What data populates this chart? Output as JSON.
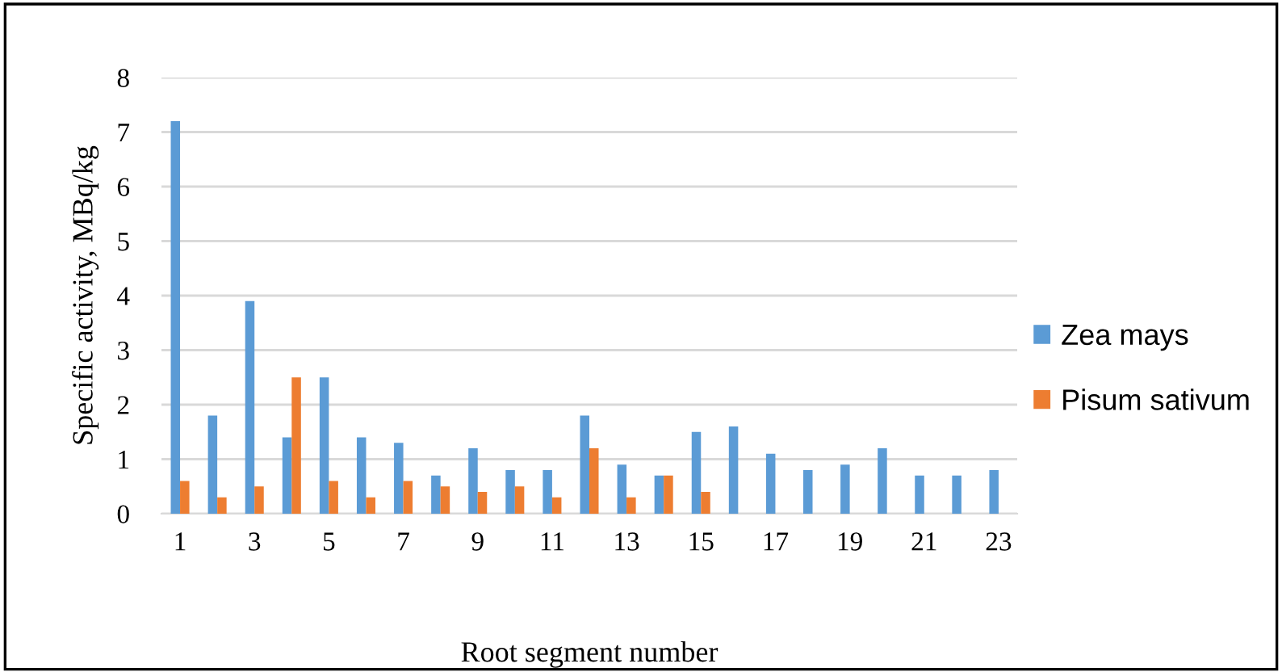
{
  "chart_data": {
    "type": "bar",
    "categories": [
      "1",
      null,
      "3",
      null,
      "5",
      null,
      "7",
      null,
      "9",
      null,
      "11",
      null,
      "13",
      null,
      "15",
      null,
      "17",
      null,
      "19",
      null,
      "21",
      null,
      "23"
    ],
    "series": [
      {
        "name": "Zea mays",
        "color": "#5b9bd5",
        "values": [
          7.2,
          1.8,
          3.9,
          1.4,
          2.5,
          1.4,
          1.3,
          0.7,
          1.2,
          0.8,
          0.8,
          1.8,
          0.9,
          0.7,
          1.5,
          1.6,
          1.1,
          0.8,
          0.9,
          1.2,
          0.7,
          0.7,
          0.8
        ]
      },
      {
        "name": "Pisum sativum",
        "color": "#ed7d31",
        "values": [
          0.6,
          0.3,
          0.5,
          2.5,
          0.6,
          0.3,
          0.6,
          0.5,
          0.4,
          0.5,
          0.3,
          1.2,
          0.3,
          0.7,
          0.4,
          null,
          null,
          null,
          null,
          null,
          null,
          null,
          null
        ]
      }
    ],
    "xlabel": "Root segment number",
    "ylabel": "Specific activity, MBq/kg",
    "ylim": [
      0,
      8
    ],
    "yticks": [
      0,
      1,
      2,
      3,
      4,
      5,
      6,
      7,
      8
    ],
    "grid": "y",
    "legend": "right"
  }
}
